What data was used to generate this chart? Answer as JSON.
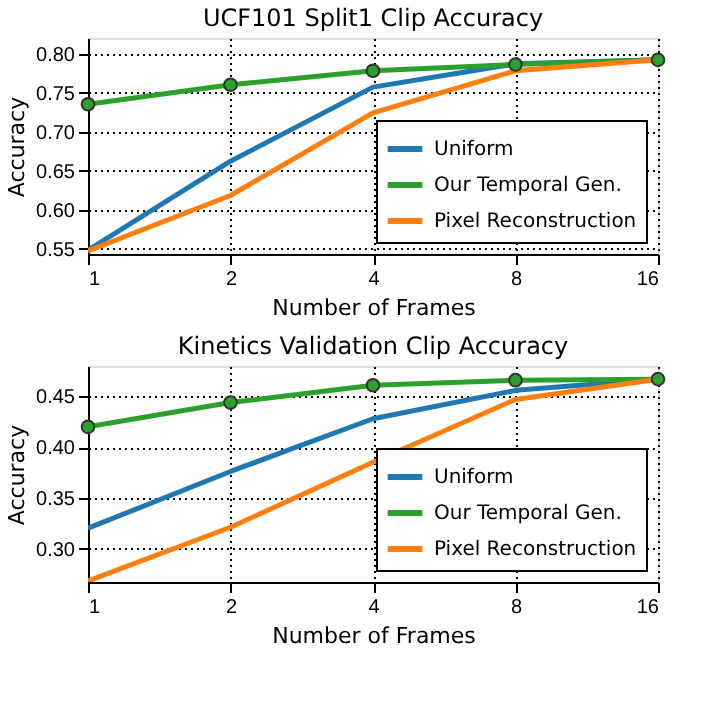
{
  "chart_data": [
    {
      "type": "line",
      "title": "UCF101 Split1 Clip Accuracy",
      "xlabel": "Number of Frames",
      "ylabel": "Accuracy",
      "x": [
        1,
        2,
        4,
        8,
        16
      ],
      "log": "x",
      "xlim": [
        1,
        16
      ],
      "xticks": [
        1,
        2,
        4,
        8,
        16
      ],
      "ylim": [
        0.543,
        0.82
      ],
      "yticks": [
        0.55,
        {
          "value": 0.6,
          "label": "0.60"
        },
        0.65,
        {
          "value": 0.7,
          "label": "0.70"
        },
        0.75,
        {
          "value": 0.8,
          "label": "0.80"
        }
      ],
      "grid": true,
      "legend": "bottom right",
      "series": [
        {
          "name": "Uniform",
          "color": "#1f77b4",
          "values": [
            0.548,
            0.662,
            0.757,
            0.787,
            0.792
          ]
        },
        {
          "name": "Our Temporal Gen.",
          "color": "#2ca02c",
          "marker": "circle",
          "values": [
            0.735,
            0.76,
            0.778,
            0.786,
            0.792
          ]
        },
        {
          "name": "Pixel Reconstruction",
          "color": "#ff7f0e",
          "values": [
            0.547,
            0.618,
            0.724,
            0.778,
            0.792
          ]
        }
      ]
    },
    {
      "type": "line",
      "title": "Kinetics Validation Clip Accuracy",
      "xlabel": "Number of Frames",
      "ylabel": "Accuracy",
      "x": [
        1,
        2,
        4,
        8,
        16
      ],
      "log": "x",
      "xlim": [
        1,
        16
      ],
      "xticks": [
        1,
        2,
        4,
        8,
        16
      ],
      "ylim": [
        0.267,
        0.48
      ],
      "yticks": [
        {
          "value": 0.3,
          "label": "0.30"
        },
        0.35,
        {
          "value": 0.4,
          "label": "0.40"
        },
        0.45
      ],
      "grid": true,
      "legend": "bottom right",
      "series": [
        {
          "name": "Uniform",
          "color": "#1f77b4",
          "values": [
            0.32,
            0.376,
            0.428,
            0.456,
            0.467
          ]
        },
        {
          "name": "Our Temporal Gen.",
          "color": "#2ca02c",
          "marker": "circle",
          "values": [
            0.42,
            0.444,
            0.461,
            0.466,
            0.467
          ]
        },
        {
          "name": "Pixel Reconstruction",
          "color": "#ff7f0e",
          "values": [
            0.268,
            0.321,
            0.385,
            0.447,
            0.467
          ]
        }
      ]
    }
  ]
}
